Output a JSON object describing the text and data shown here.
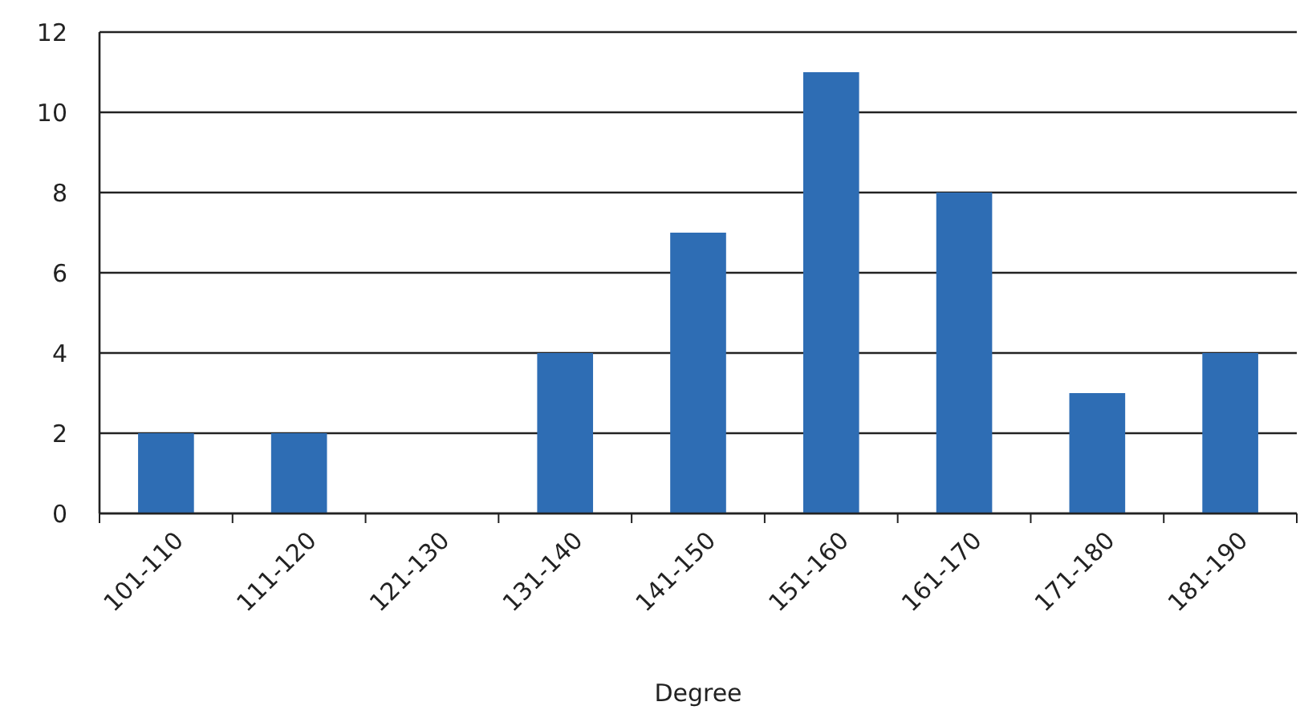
{
  "chart_data": {
    "type": "bar",
    "xlabel": "Degree",
    "categories": [
      "101-110",
      "111-120",
      "121-130",
      "131-140",
      "141-150",
      "151-160",
      "161-170",
      "171-180",
      "181-190"
    ],
    "values": [
      2,
      2,
      0,
      4,
      7,
      11,
      8,
      3,
      4
    ],
    "color": "#2e6db4",
    "ylim": [
      0,
      12
    ],
    "yticks": [
      0,
      2,
      4,
      6,
      8,
      10,
      12
    ],
    "grid": "y"
  }
}
